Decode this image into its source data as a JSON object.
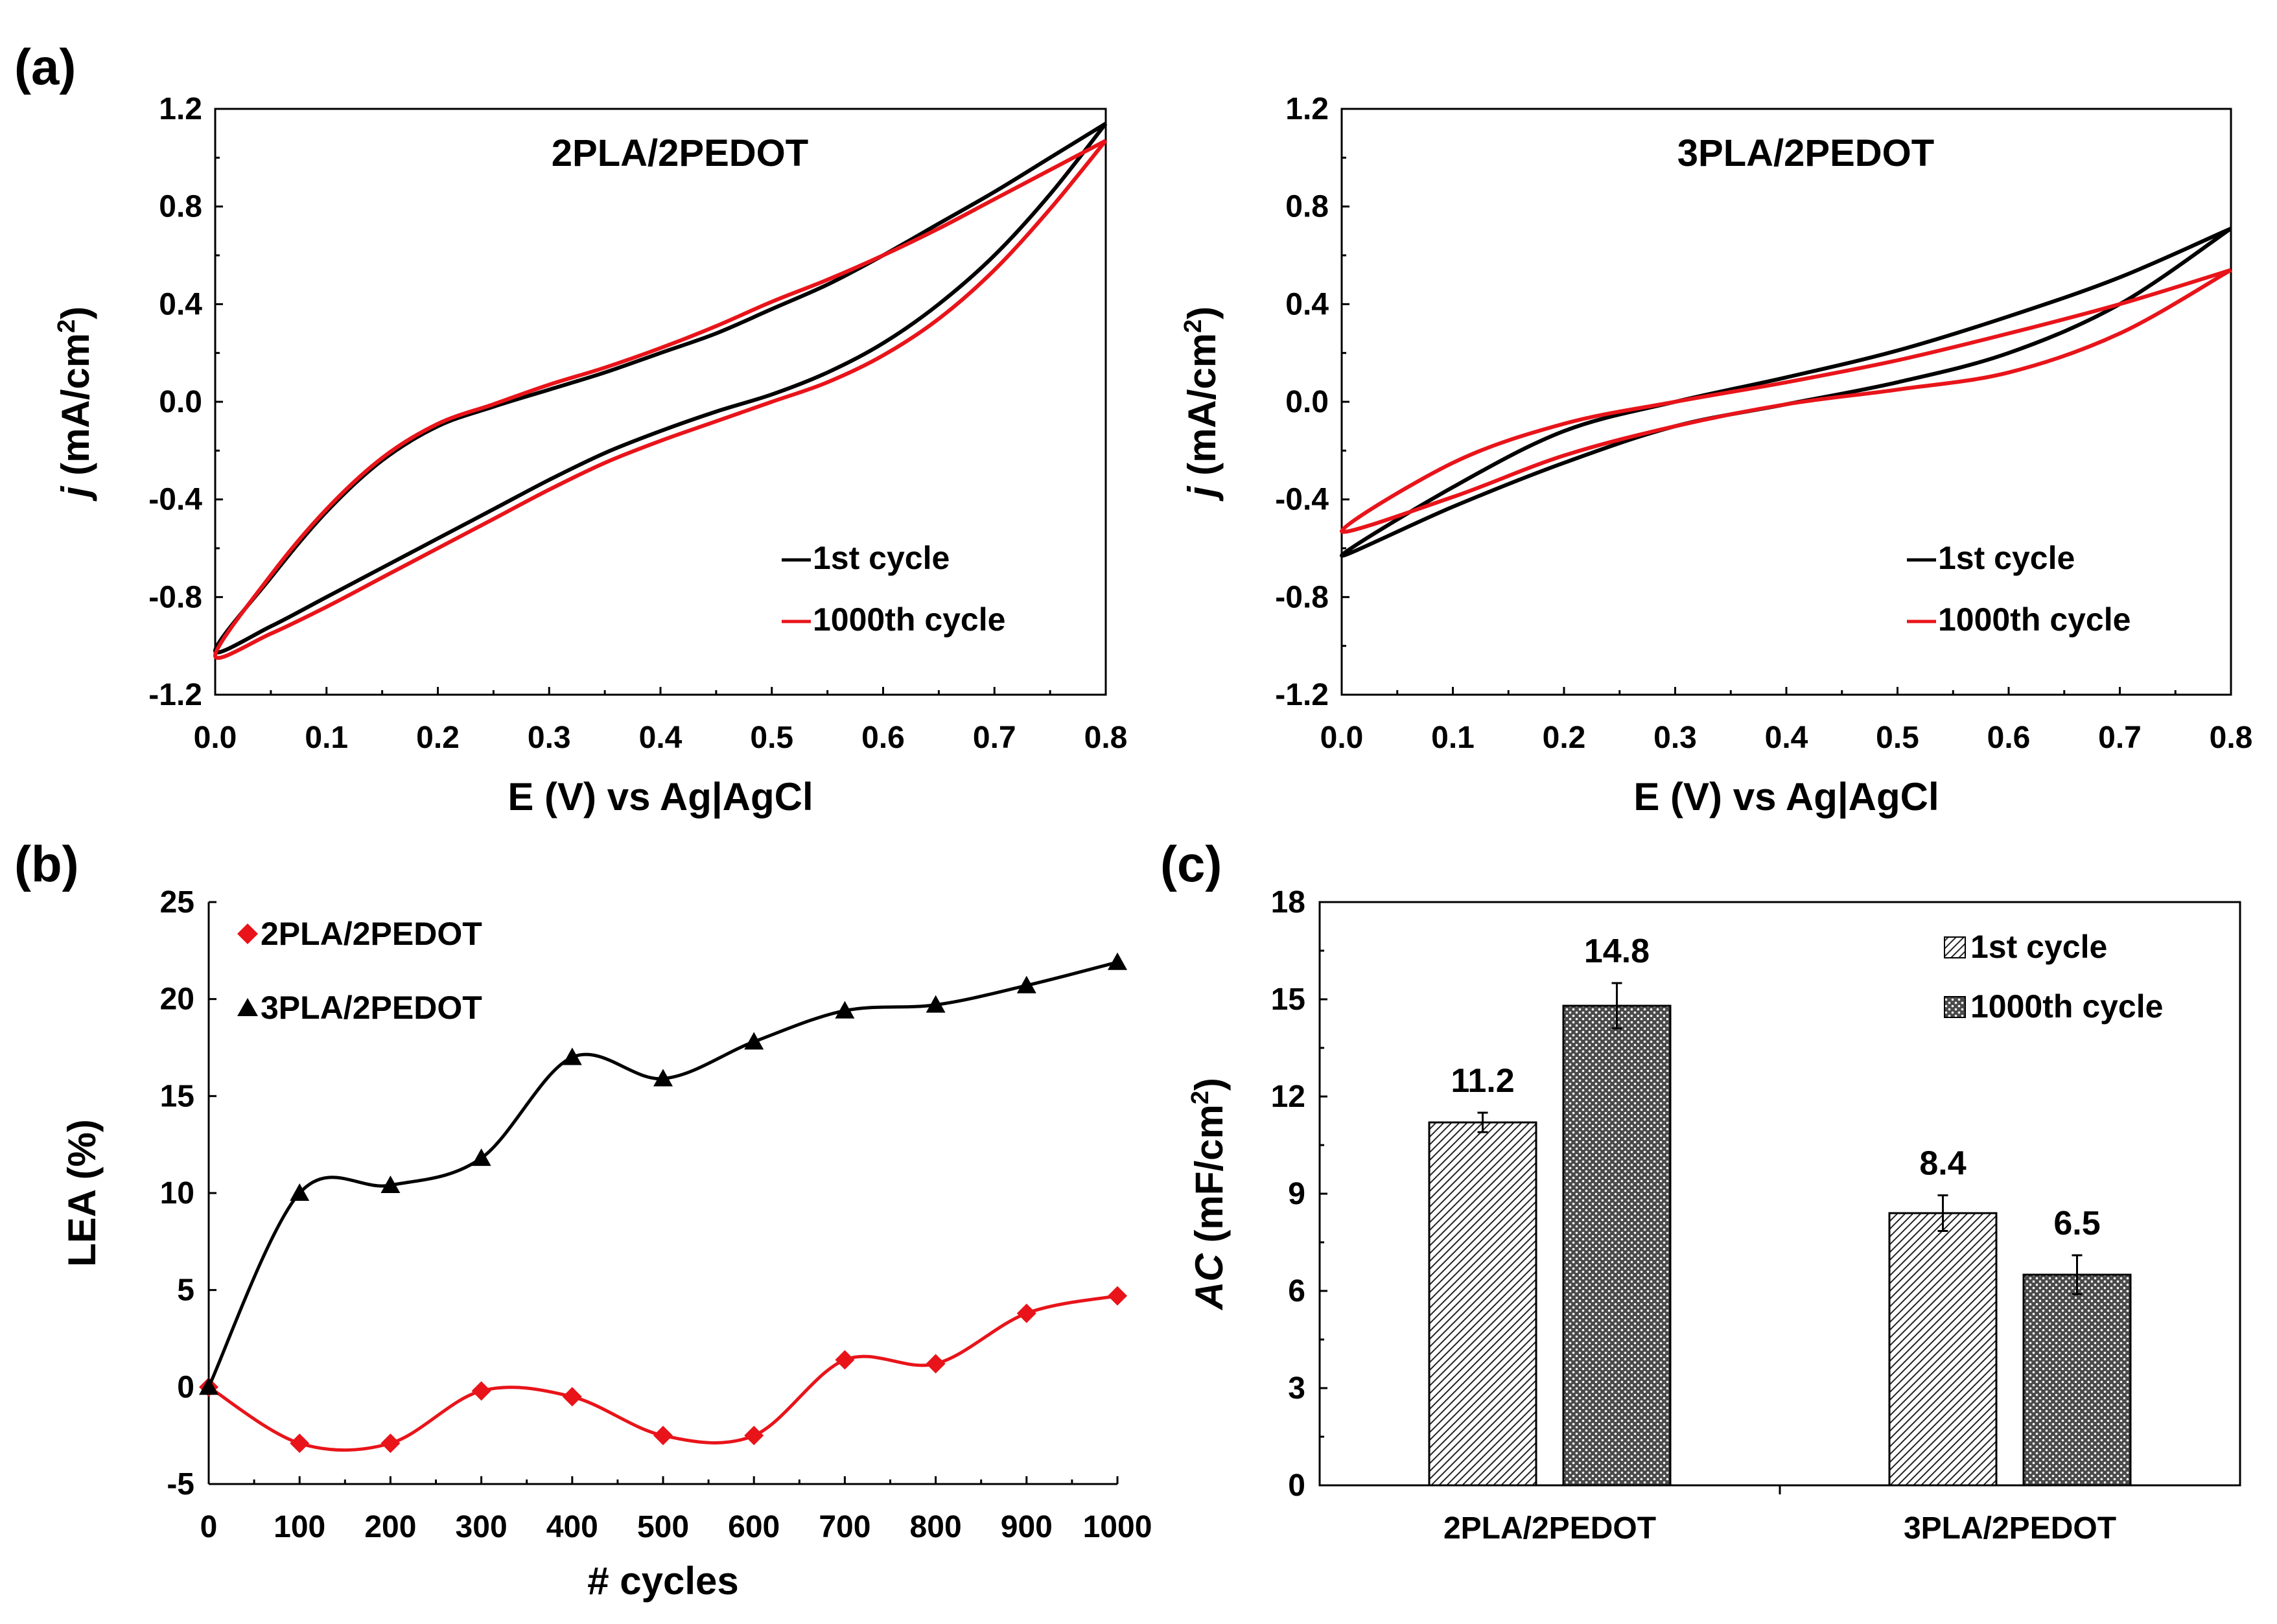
{
  "panels": {
    "a": "(a)",
    "b": "(b)",
    "c": "(c)"
  },
  "colors": {
    "black": "#000000",
    "red": "#e8141a"
  },
  "chart_data": [
    {
      "id": "cv_2pla",
      "type": "line",
      "title": "2PLA/2PEDOT",
      "xlabel": "E (V) vs Ag|AgCl",
      "ylabel_italic": "j",
      "ylabel": " (mA/cm",
      "ylabel_sup": "2",
      "ylabel_end": ")",
      "xlim": [
        0,
        0.8
      ],
      "ylim": [
        -1.2,
        1.2
      ],
      "xticks": [
        "0.0",
        "0.1",
        "0.2",
        "0.3",
        "0.4",
        "0.5",
        "0.6",
        "0.7",
        "0.8"
      ],
      "yticks": [
        "-1.2",
        "-0.8",
        "-0.4",
        "0.0",
        "0.4",
        "0.8",
        "1.2"
      ],
      "series": [
        {
          "name": "1st cycle",
          "color": "#000000",
          "x": [
            0.8,
            0.75,
            0.7,
            0.65,
            0.6,
            0.55,
            0.5,
            0.45,
            0.4,
            0.35,
            0.3,
            0.25,
            0.2,
            0.15,
            0.1,
            0.05,
            0,
            0.05,
            0.1,
            0.15,
            0.2,
            0.25,
            0.3,
            0.35,
            0.4,
            0.45,
            0.5,
            0.55,
            0.6,
            0.65,
            0.7,
            0.75,
            0.8
          ],
          "y": [
            1.14,
            1.0,
            0.86,
            0.73,
            0.6,
            0.48,
            0.38,
            0.28,
            0.2,
            0.12,
            0.05,
            -0.02,
            -0.1,
            -0.24,
            -0.45,
            -0.72,
            -1.02,
            -0.92,
            -0.8,
            -0.68,
            -0.56,
            -0.44,
            -0.32,
            -0.21,
            -0.12,
            -0.04,
            0.03,
            0.12,
            0.24,
            0.4,
            0.6,
            0.85,
            1.14
          ]
        },
        {
          "name": "1000th cycle",
          "color": "#e8141a",
          "x": [
            0.8,
            0.75,
            0.7,
            0.65,
            0.6,
            0.55,
            0.5,
            0.45,
            0.4,
            0.35,
            0.3,
            0.25,
            0.2,
            0.15,
            0.1,
            0.05,
            0,
            0.05,
            0.1,
            0.15,
            0.2,
            0.25,
            0.3,
            0.35,
            0.4,
            0.45,
            0.5,
            0.55,
            0.6,
            0.65,
            0.7,
            0.75,
            0.8
          ],
          "y": [
            1.07,
            0.95,
            0.83,
            0.71,
            0.6,
            0.5,
            0.41,
            0.31,
            0.22,
            0.14,
            0.07,
            -0.01,
            -0.09,
            -0.23,
            -0.44,
            -0.71,
            -1.04,
            -0.95,
            -0.84,
            -0.72,
            -0.6,
            -0.48,
            -0.36,
            -0.25,
            -0.16,
            -0.08,
            0.0,
            0.08,
            0.19,
            0.34,
            0.54,
            0.79,
            1.07
          ]
        }
      ],
      "legend": [
        "1st cycle",
        "1000th cycle"
      ]
    },
    {
      "id": "cv_3pla",
      "type": "line",
      "title": "3PLA/2PEDOT",
      "xlabel": "E (V) vs Ag|AgCl",
      "ylabel_italic": "j",
      "ylabel": " (mA/cm",
      "ylabel_sup": "2",
      "ylabel_end": ")",
      "xlim": [
        0,
        0.8
      ],
      "ylim": [
        -1.2,
        1.2
      ],
      "xticks": [
        "0.0",
        "0.1",
        "0.2",
        "0.3",
        "0.4",
        "0.5",
        "0.6",
        "0.7",
        "0.8"
      ],
      "yticks": [
        "-1.2",
        "-0.8",
        "-0.4",
        "0.0",
        "0.4",
        "0.8",
        "1.2"
      ],
      "series": [
        {
          "name": "1st cycle",
          "color": "#000000",
          "x": [
            0.8,
            0.7,
            0.6,
            0.5,
            0.4,
            0.3,
            0.2,
            0.1,
            0,
            0.1,
            0.2,
            0.3,
            0.4,
            0.5,
            0.6,
            0.7,
            0.8
          ],
          "y": [
            0.71,
            0.51,
            0.35,
            0.21,
            0.1,
            0.0,
            -0.12,
            -0.35,
            -0.63,
            -0.43,
            -0.25,
            -0.1,
            -0.01,
            0.08,
            0.2,
            0.4,
            0.71
          ]
        },
        {
          "name": "1000th cycle",
          "color": "#e8141a",
          "x": [
            0.8,
            0.7,
            0.6,
            0.5,
            0.4,
            0.3,
            0.2,
            0.1,
            0,
            0.1,
            0.2,
            0.3,
            0.4,
            0.5,
            0.6,
            0.7,
            0.8
          ],
          "y": [
            0.54,
            0.4,
            0.28,
            0.17,
            0.08,
            0.0,
            -0.09,
            -0.25,
            -0.53,
            -0.39,
            -0.22,
            -0.1,
            -0.01,
            0.05,
            0.12,
            0.28,
            0.54
          ]
        }
      ],
      "legend": [
        "1st cycle",
        "1000th cycle"
      ]
    },
    {
      "id": "lea",
      "type": "line",
      "xlabel": "# cycles",
      "ylabel": "LEA (%)",
      "xlim": [
        0,
        1000
      ],
      "ylim": [
        -5,
        25
      ],
      "xticks": [
        "0",
        "100",
        "200",
        "300",
        "400",
        "500",
        "600",
        "700",
        "800",
        "900",
        "1000"
      ],
      "yticks": [
        "-5",
        "0",
        "5",
        "10",
        "15",
        "20",
        "25"
      ],
      "x": [
        0,
        100,
        200,
        300,
        400,
        500,
        600,
        700,
        800,
        900,
        1000
      ],
      "series": [
        {
          "name": "2PLA/2PEDOT",
          "color": "#e8141a",
          "marker": "diamond",
          "values": [
            0,
            -2.9,
            -2.9,
            -0.2,
            -0.5,
            -2.5,
            -2.5,
            1.4,
            1.2,
            3.8,
            4.7
          ]
        },
        {
          "name": "3PLA/2PEDOT",
          "color": "#000000",
          "marker": "triangle",
          "values": [
            0,
            10,
            10.4,
            11.8,
            17,
            15.9,
            17.8,
            19.4,
            19.7,
            20.7,
            21.9
          ]
        }
      ],
      "legend": [
        "2PLA/2PEDOT",
        "3PLA/2PEDOT"
      ]
    },
    {
      "id": "ac",
      "type": "bar",
      "ylabel_italic": "AC",
      "ylabel": " (mF/cm",
      "ylabel_sup": "2",
      "ylabel_end": ")",
      "ylim": [
        0,
        18
      ],
      "yticks": [
        "0",
        "3",
        "6",
        "9",
        "12",
        "15",
        "18"
      ],
      "categories": [
        "2PLA/2PEDOT",
        "3PLA/2PEDOT"
      ],
      "series": [
        {
          "name": "1st cycle",
          "pattern": "diagonal",
          "values": [
            11.2,
            8.4
          ],
          "errors": [
            0.3,
            0.55
          ],
          "labels": [
            "11.2",
            "8.4"
          ]
        },
        {
          "name": "1000th cycle",
          "pattern": "dots",
          "values": [
            14.8,
            6.5
          ],
          "errors": [
            0.7,
            0.6
          ],
          "labels": [
            "14.8",
            "6.5"
          ]
        }
      ],
      "legend": [
        "1st cycle",
        "1000th cycle"
      ]
    }
  ]
}
